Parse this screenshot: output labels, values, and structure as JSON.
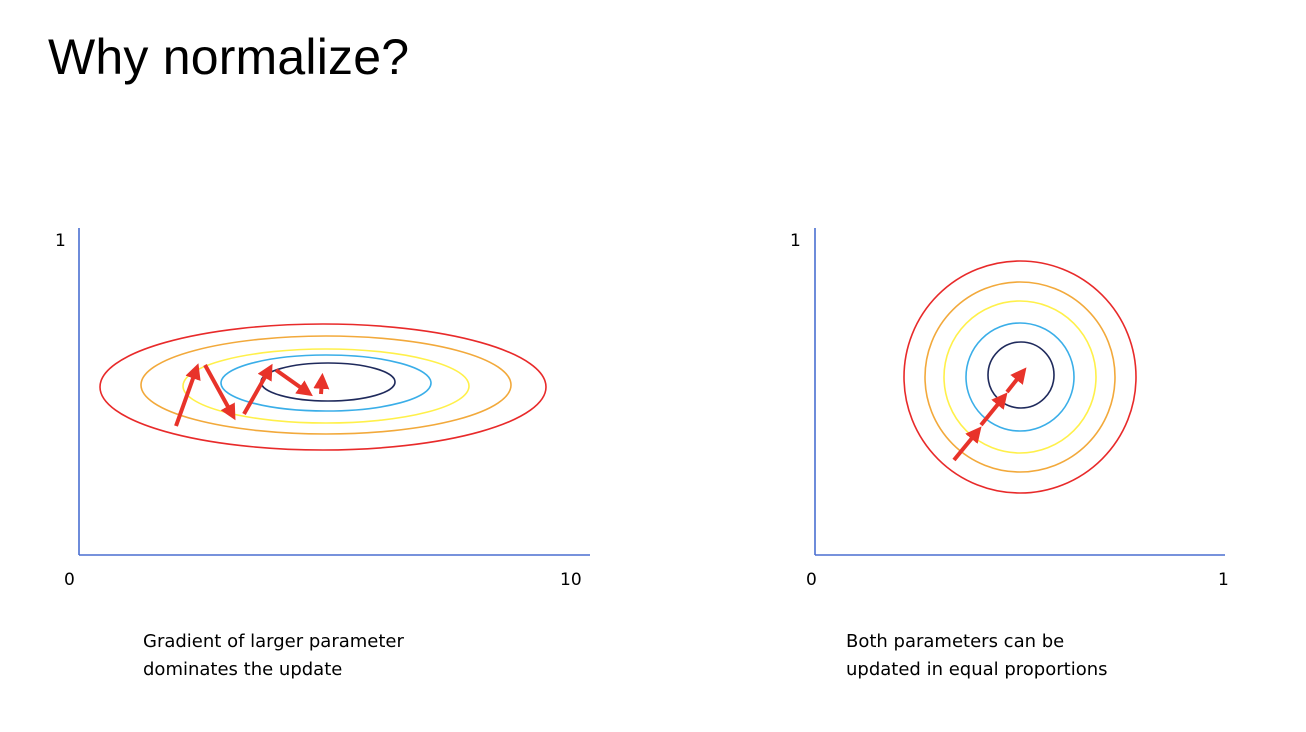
{
  "title": "Why normalize?",
  "left_panel": {
    "y_max_label": "1",
    "x_min_label": "0",
    "x_max_label": "10",
    "caption_line1": "Gradient of larger parameter",
    "caption_line2": "dominates the update",
    "contour_colors": [
      "#e82a2a",
      "#f2a93b",
      "#fff04a",
      "#3aaee8",
      "#1f2a5c"
    ]
  },
  "right_panel": {
    "y_max_label": "1",
    "x_min_label": "0",
    "x_max_label": "1",
    "caption_line1": "Both parameters can be",
    "caption_line2": "updated in equal proportions",
    "contour_colors": [
      "#e82a2a",
      "#f2a93b",
      "#fff04a",
      "#3aaee8",
      "#1f2a5c"
    ]
  },
  "colors": {
    "axis": "#4a6fd0",
    "arrow": "#e8332a"
  }
}
